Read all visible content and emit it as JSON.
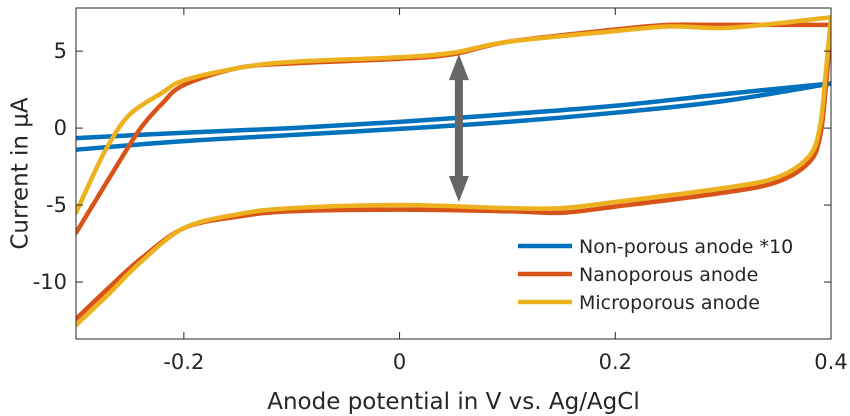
{
  "chart_data": {
    "type": "line",
    "title": "",
    "xlabel": "Anode potential in V vs. Ag/AgCl",
    "ylabel": "Current in μA",
    "xlim": [
      -0.3,
      0.4
    ],
    "ylim": [
      -13.7,
      7.8
    ],
    "xticks": [
      -0.2,
      0,
      0.2,
      0.4
    ],
    "xtick_labels": [
      "-0.2",
      "0",
      "0.2",
      "0.4"
    ],
    "yticks": [
      -10,
      -5,
      0,
      5
    ],
    "ytick_labels": [
      "-10",
      "-5",
      "0",
      "5"
    ],
    "grid": false,
    "legend_position": "bottom-right",
    "series": [
      {
        "name": "Non-porous anode *10",
        "color": "#0072BD",
        "forward": [
          [
            -0.3,
            -1.4
          ],
          [
            -0.2,
            -0.85
          ],
          [
            -0.1,
            -0.45
          ],
          [
            0.0,
            -0.05
          ],
          [
            0.1,
            0.4
          ],
          [
            0.2,
            1.0
          ],
          [
            0.3,
            1.75
          ],
          [
            0.4,
            2.9
          ]
        ],
        "reverse": [
          [
            0.4,
            2.9
          ],
          [
            0.3,
            2.2
          ],
          [
            0.2,
            1.45
          ],
          [
            0.1,
            0.9
          ],
          [
            0.0,
            0.4
          ],
          [
            -0.1,
            0.0
          ],
          [
            -0.2,
            -0.3
          ],
          [
            -0.3,
            -0.65
          ]
        ]
      },
      {
        "name": "Nanoporous anode",
        "color": "#D95319",
        "forward": [
          [
            -0.3,
            -12.4
          ],
          [
            -0.27,
            -10.4
          ],
          [
            -0.24,
            -8.5
          ],
          [
            -0.2,
            -6.5
          ],
          [
            -0.15,
            -5.75
          ],
          [
            -0.1,
            -5.4
          ],
          [
            0.0,
            -5.3
          ],
          [
            0.1,
            -5.4
          ],
          [
            0.15,
            -5.5
          ],
          [
            0.2,
            -5.1
          ],
          [
            0.3,
            -4.2
          ],
          [
            0.35,
            -3.5
          ],
          [
            0.38,
            -2.2
          ],
          [
            0.39,
            -0.5
          ],
          [
            0.395,
            2.5
          ],
          [
            0.4,
            6.7
          ]
        ],
        "reverse": [
          [
            0.4,
            6.7
          ],
          [
            0.3,
            6.7
          ],
          [
            0.25,
            6.7
          ],
          [
            0.2,
            6.4
          ],
          [
            0.1,
            5.6
          ],
          [
            0.05,
            4.8
          ],
          [
            0.0,
            4.5
          ],
          [
            -0.1,
            4.2
          ],
          [
            -0.15,
            3.9
          ],
          [
            -0.2,
            2.8
          ],
          [
            -0.22,
            1.6
          ],
          [
            -0.24,
            0.0
          ],
          [
            -0.26,
            -2.2
          ],
          [
            -0.28,
            -4.5
          ],
          [
            -0.3,
            -6.8
          ]
        ]
      },
      {
        "name": "Microporous anode",
        "color": "#EDB120",
        "forward": [
          [
            -0.3,
            -12.8
          ],
          [
            -0.27,
            -10.8
          ],
          [
            -0.24,
            -8.7
          ],
          [
            -0.2,
            -6.5
          ],
          [
            -0.15,
            -5.6
          ],
          [
            -0.1,
            -5.2
          ],
          [
            0.0,
            -5.0
          ],
          [
            0.1,
            -5.2
          ],
          [
            0.15,
            -5.2
          ],
          [
            0.2,
            -4.8
          ],
          [
            0.3,
            -3.9
          ],
          [
            0.35,
            -3.2
          ],
          [
            0.38,
            -1.8
          ],
          [
            0.39,
            0.2
          ],
          [
            0.395,
            3.5
          ],
          [
            0.4,
            7.2
          ]
        ],
        "reverse": [
          [
            0.4,
            7.2
          ],
          [
            0.35,
            6.8
          ],
          [
            0.3,
            6.5
          ],
          [
            0.25,
            6.6
          ],
          [
            0.2,
            6.3
          ],
          [
            0.1,
            5.6
          ],
          [
            0.05,
            4.9
          ],
          [
            0.0,
            4.6
          ],
          [
            -0.1,
            4.3
          ],
          [
            -0.15,
            3.9
          ],
          [
            -0.2,
            3.1
          ],
          [
            -0.22,
            2.3
          ],
          [
            -0.25,
            0.9
          ],
          [
            -0.27,
            -1.1
          ],
          [
            -0.285,
            -3.2
          ],
          [
            -0.3,
            -5.5
          ]
        ]
      }
    ],
    "annotations": [
      {
        "type": "double-arrow",
        "x": 0.055,
        "y_start": 4.8,
        "y_end": -4.8,
        "color": "#666666"
      }
    ]
  }
}
